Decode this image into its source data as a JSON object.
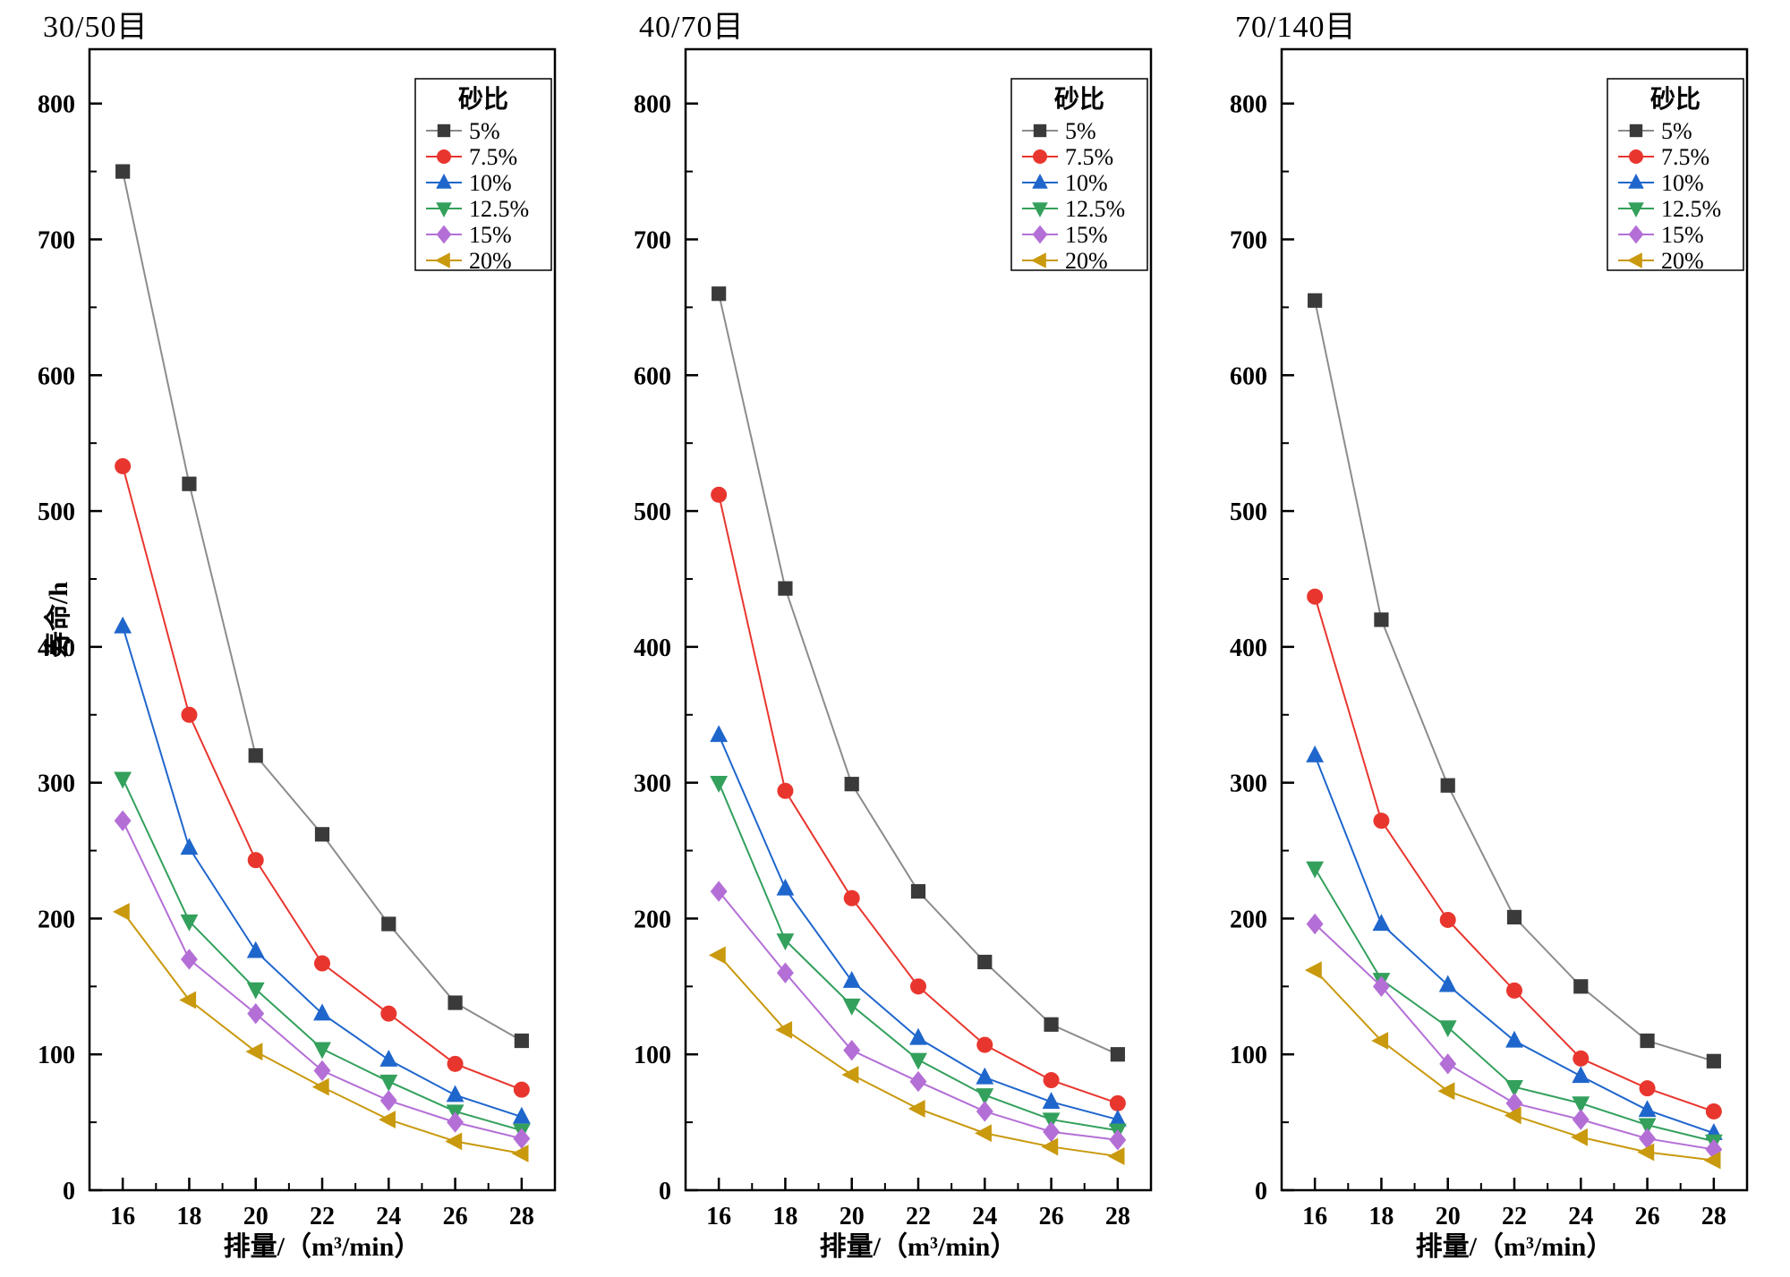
{
  "figure": {
    "background": "#ffffff"
  },
  "chart_data": [
    {
      "type": "line",
      "title": "30/50目",
      "xlabel": "排量/（m³/min）",
      "ylabel": "寿命/h",
      "legend_title": "砂比",
      "legend_position": "top-right",
      "grid": false,
      "x": [
        16,
        18,
        20,
        22,
        24,
        26,
        28
      ],
      "x_ticks": [
        16,
        18,
        20,
        22,
        24,
        26,
        28
      ],
      "y_ticks": [
        0,
        100,
        200,
        300,
        400,
        500,
        600,
        700,
        800
      ],
      "xlim": [
        15,
        29
      ],
      "ylim": [
        0,
        840
      ],
      "series": [
        {
          "name": "5%",
          "marker": "square",
          "color": "#3a3a3a",
          "line_color": "#8c8c8c",
          "values": [
            750,
            520,
            320,
            262,
            196,
            138,
            110
          ]
        },
        {
          "name": "7.5%",
          "marker": "circle",
          "color": "#e8362e",
          "values": [
            533,
            350,
            243,
            167,
            130,
            93,
            74
          ]
        },
        {
          "name": "10%",
          "marker": "triangle-up",
          "color": "#1f66cc",
          "values": [
            415,
            252,
            176,
            130,
            96,
            70,
            54
          ]
        },
        {
          "name": "12.5%",
          "marker": "triangle-down",
          "color": "#33a05c",
          "values": [
            303,
            198,
            148,
            104,
            80,
            58,
            44
          ]
        },
        {
          "name": "15%",
          "marker": "diamond",
          "color": "#b46fd6",
          "values": [
            272,
            170,
            130,
            88,
            66,
            50,
            38
          ]
        },
        {
          "name": "20%",
          "marker": "triangle-left",
          "color": "#c9990e",
          "values": [
            205,
            140,
            102,
            76,
            52,
            36,
            27
          ]
        }
      ]
    },
    {
      "type": "line",
      "title": "40/70目",
      "xlabel": "排量/（m³/min）",
      "ylabel": "",
      "legend_title": "砂比",
      "legend_position": "top-right",
      "grid": false,
      "x": [
        16,
        18,
        20,
        22,
        24,
        26,
        28
      ],
      "x_ticks": [
        16,
        18,
        20,
        22,
        24,
        26,
        28
      ],
      "y_ticks": [
        0,
        100,
        200,
        300,
        400,
        500,
        600,
        700,
        800
      ],
      "xlim": [
        15,
        29
      ],
      "ylim": [
        0,
        840
      ],
      "series": [
        {
          "name": "5%",
          "marker": "square",
          "color": "#3a3a3a",
          "line_color": "#8c8c8c",
          "values": [
            660,
            443,
            299,
            220,
            168,
            122,
            100
          ]
        },
        {
          "name": "7.5%",
          "marker": "circle",
          "color": "#e8362e",
          "values": [
            512,
            294,
            215,
            150,
            107,
            81,
            64
          ]
        },
        {
          "name": "10%",
          "marker": "triangle-up",
          "color": "#1f66cc",
          "values": [
            335,
            222,
            154,
            112,
            83,
            65,
            52
          ]
        },
        {
          "name": "12.5%",
          "marker": "triangle-down",
          "color": "#33a05c",
          "values": [
            300,
            184,
            136,
            96,
            70,
            52,
            44
          ]
        },
        {
          "name": "15%",
          "marker": "diamond",
          "color": "#b46fd6",
          "values": [
            220,
            160,
            103,
            80,
            58,
            43,
            37
          ]
        },
        {
          "name": "20%",
          "marker": "triangle-left",
          "color": "#c9990e",
          "values": [
            173,
            118,
            85,
            60,
            42,
            32,
            25
          ]
        }
      ]
    },
    {
      "type": "line",
      "title": "70/140目",
      "xlabel": "排量/（m³/min）",
      "ylabel": "",
      "legend_title": "砂比",
      "legend_position": "top-right",
      "grid": false,
      "x": [
        16,
        18,
        20,
        22,
        24,
        26,
        28
      ],
      "x_ticks": [
        16,
        18,
        20,
        22,
        24,
        26,
        28
      ],
      "y_ticks": [
        0,
        100,
        200,
        300,
        400,
        500,
        600,
        700,
        800
      ],
      "xlim": [
        15,
        29
      ],
      "ylim": [
        0,
        840
      ],
      "series": [
        {
          "name": "5%",
          "marker": "square",
          "color": "#3a3a3a",
          "line_color": "#8c8c8c",
          "values": [
            655,
            420,
            298,
            201,
            150,
            110,
            95
          ]
        },
        {
          "name": "7.5%",
          "marker": "circle",
          "color": "#e8362e",
          "values": [
            437,
            272,
            199,
            147,
            97,
            75,
            58
          ]
        },
        {
          "name": "10%",
          "marker": "triangle-up",
          "color": "#1f66cc",
          "values": [
            320,
            196,
            151,
            110,
            84,
            59,
            42
          ]
        },
        {
          "name": "12.5%",
          "marker": "triangle-down",
          "color": "#33a05c",
          "values": [
            237,
            155,
            120,
            76,
            64,
            48,
            36
          ]
        },
        {
          "name": "15%",
          "marker": "diamond",
          "color": "#b46fd6",
          "values": [
            196,
            150,
            93,
            64,
            52,
            38,
            30
          ]
        },
        {
          "name": "20%",
          "marker": "triangle-left",
          "color": "#c9990e",
          "values": [
            162,
            110,
            73,
            55,
            39,
            28,
            22
          ]
        }
      ]
    }
  ]
}
